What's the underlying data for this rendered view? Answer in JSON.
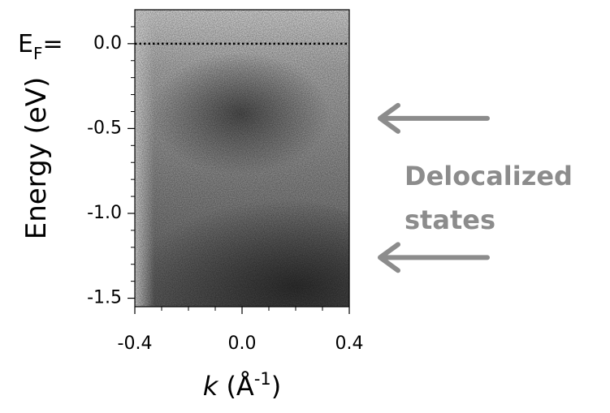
{
  "chart_data": {
    "type": "image",
    "ylabel": "Energy (eV)",
    "xlabel": {
      "variable": "k",
      "unit": " (Å",
      "exponent": "-1",
      "close": ")"
    },
    "xlim": [
      -0.4,
      0.4
    ],
    "ylim": [
      -1.55,
      0.2
    ],
    "xticks": [
      -0.4,
      {
        "value": 0,
        "label": "0.0"
      },
      0.4
    ],
    "yticks": [
      {
        "value": 0,
        "label": "0.0"
      },
      -0.5,
      {
        "value": -1,
        "label": "-1.0"
      },
      -1.5
    ],
    "xminorticks": [
      -0.3,
      -0.2,
      -0.1,
      0.1,
      0.2,
      0.3
    ],
    "yminorticks": [
      0.1,
      -0.1,
      -0.2,
      -0.3,
      -0.4,
      -0.6,
      -0.7,
      -0.8,
      -0.9,
      -1.1,
      -1.2,
      -1.3,
      -1.4
    ],
    "fermi_label": {
      "symbol": "E",
      "subscript": "F",
      "suffix": "="
    },
    "annotation": {
      "lines": [
        "Delocalized",
        "states"
      ],
      "color": "#8c8c8c",
      "arrows": [
        -0.44,
        -1.26
      ]
    }
  }
}
